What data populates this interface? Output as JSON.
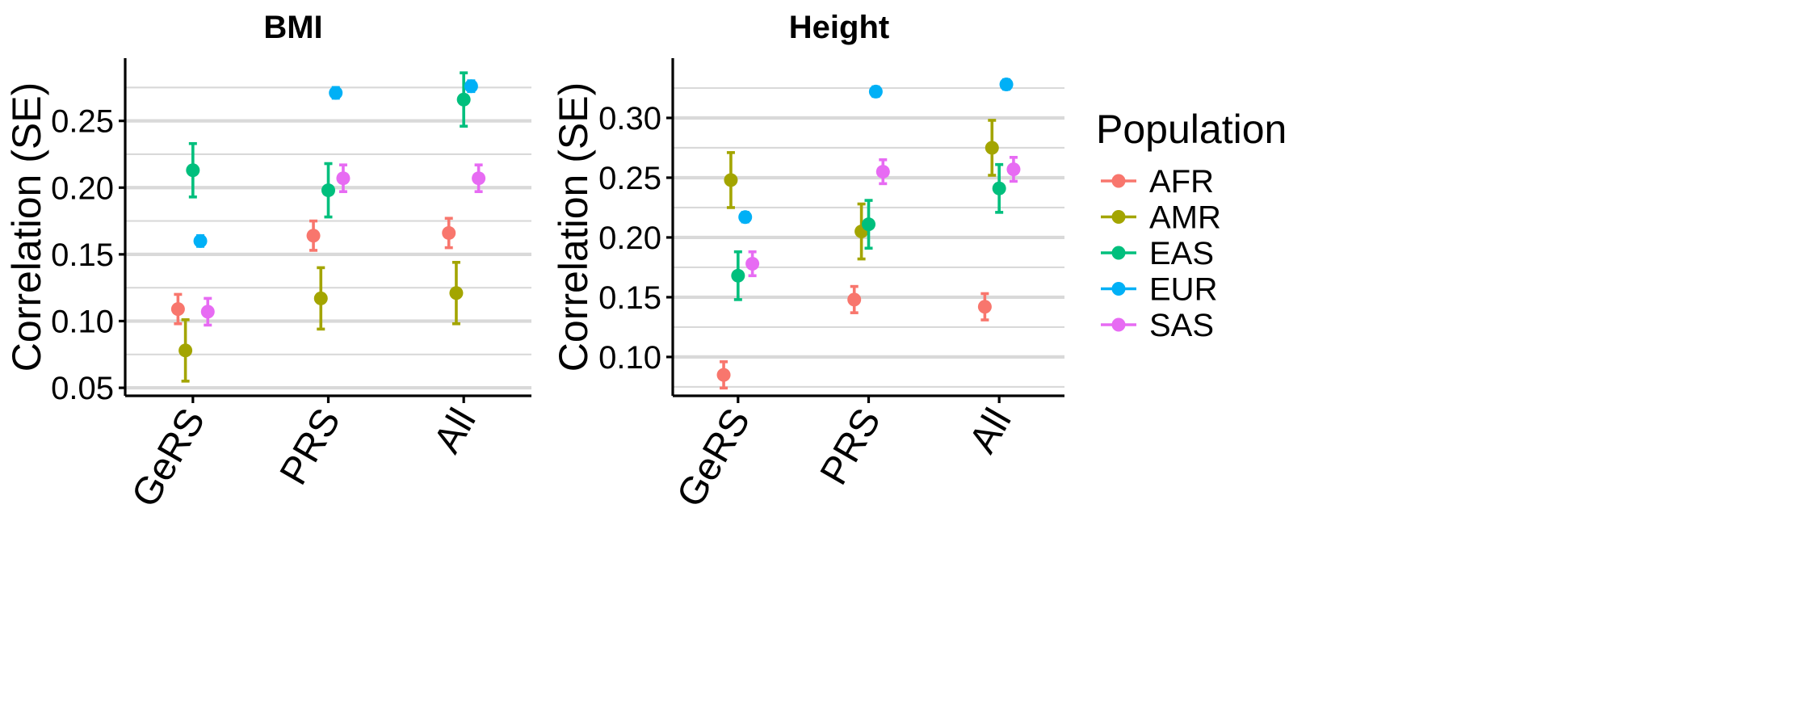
{
  "chart_data": {
    "type": "errorbar",
    "legend": {
      "title": "Population",
      "entries": [
        {
          "name": "AFR",
          "color": "#F8766D"
        },
        {
          "name": "AMR",
          "color": "#A3A500"
        },
        {
          "name": "EAS",
          "color": "#00BF7D"
        },
        {
          "name": "EUR",
          "color": "#00B0F6"
        },
        {
          "name": "SAS",
          "color": "#E76BF3"
        }
      ],
      "placement": "right"
    },
    "categories": [
      "GeRS",
      "PRS",
      "All"
    ],
    "panels": [
      {
        "title": "BMI",
        "ylabel": "Correlation (SE)",
        "ylim": [
          0.044,
          0.297
        ],
        "yticks": [
          0.05,
          0.1,
          0.15,
          0.2,
          0.25
        ],
        "ytick_labels": [
          "0.05",
          "0.10",
          "0.15",
          "0.20",
          "0.25"
        ],
        "yminor": [
          0.075,
          0.125,
          0.175,
          0.225,
          0.275
        ],
        "series": [
          {
            "name": "AFR",
            "values": [
              0.109,
              0.164,
              0.166
            ],
            "se": [
              0.011,
              0.011,
              0.011
            ]
          },
          {
            "name": "AMR",
            "values": [
              0.078,
              0.117,
              0.121
            ],
            "se": [
              0.023,
              0.023,
              0.023
            ]
          },
          {
            "name": "EAS",
            "values": [
              0.213,
              0.198,
              0.266
            ],
            "se": [
              0.02,
              0.02,
              0.02
            ]
          },
          {
            "name": "EUR",
            "values": [
              0.16,
              0.271,
              0.276
            ],
            "se": [
              0.004,
              0.004,
              0.004
            ]
          },
          {
            "name": "SAS",
            "values": [
              0.107,
              0.207,
              0.207
            ],
            "se": [
              0.01,
              0.01,
              0.01
            ]
          }
        ]
      },
      {
        "title": "Height",
        "ylabel": "Correlation (SE)",
        "ylim": [
          0.0675,
          0.35
        ],
        "yticks": [
          0.1,
          0.15,
          0.2,
          0.25,
          0.3
        ],
        "ytick_labels": [
          "0.10",
          "0.15",
          "0.20",
          "0.25",
          "0.30"
        ],
        "yminor": [
          0.075,
          0.125,
          0.175,
          0.225,
          0.275,
          0.325
        ],
        "series": [
          {
            "name": "AFR",
            "values": [
              0.085,
              0.148,
              0.142
            ],
            "se": [
              0.011,
              0.011,
              0.011
            ]
          },
          {
            "name": "AMR",
            "values": [
              0.248,
              0.205,
              0.275
            ],
            "se": [
              0.023,
              0.023,
              0.023
            ]
          },
          {
            "name": "EAS",
            "values": [
              0.168,
              0.211,
              0.241
            ],
            "se": [
              0.02,
              0.02,
              0.02
            ]
          },
          {
            "name": "EUR",
            "values": [
              0.217,
              0.322,
              0.328
            ],
            "se": [
              0.004,
              0.004,
              0.004
            ]
          },
          {
            "name": "SAS",
            "values": [
              0.178,
              0.255,
              0.257
            ],
            "se": [
              0.01,
              0.01,
              0.01
            ]
          }
        ]
      }
    ]
  }
}
